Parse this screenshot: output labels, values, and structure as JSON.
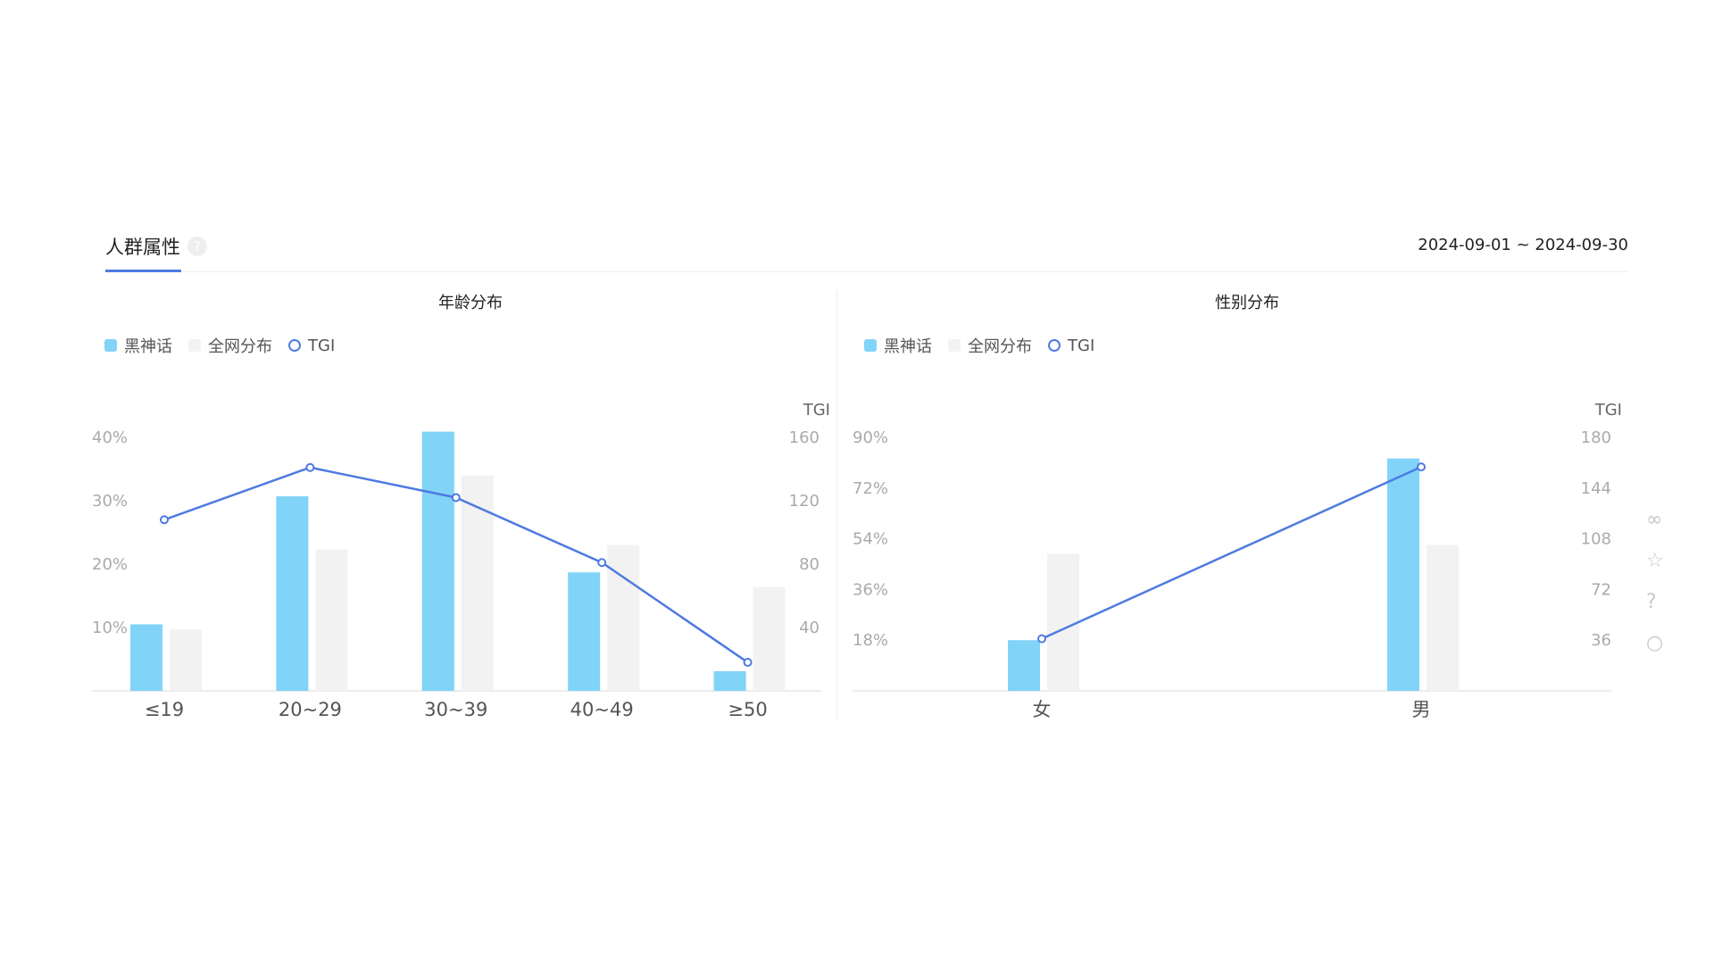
{
  "header": {
    "tab_label": "人群属性",
    "help_icon": "?",
    "date_range": "2024-09-01 ~ 2024-09-30"
  },
  "legend": {
    "series_a": "黑神话",
    "series_b": "全网分布",
    "series_c": "TGI"
  },
  "colors": {
    "series_a": "#81d3f8",
    "series_b": "#f2f2f2",
    "tgi_line": "#4e7be0",
    "tab_accent": "#4e7be0"
  },
  "side_icons": [
    "link-icon",
    "star-icon",
    "help-circle-icon",
    "circle-icon"
  ],
  "chart_data": [
    {
      "type": "bar",
      "title": "年龄分布",
      "categories": [
        "≤19",
        "20~29",
        "30~39",
        "40~49",
        "≥50"
      ],
      "series": [
        {
          "name": "黑神话",
          "values": [
            10.5,
            30.7,
            40.9,
            18.7,
            3.1
          ]
        },
        {
          "name": "全网分布",
          "values": [
            9.7,
            22.3,
            34.0,
            23.0,
            16.4
          ]
        },
        {
          "name": "TGI",
          "type": "line",
          "axis": "right",
          "values": [
            108,
            141,
            122,
            81,
            18
          ]
        }
      ],
      "y_left": {
        "ticks": [
          "10%",
          "20%",
          "30%",
          "40%"
        ],
        "tick_values": [
          10,
          20,
          30,
          40
        ],
        "ylim": [
          0,
          40
        ]
      },
      "y_right": {
        "label": "TGI",
        "ticks": [
          "40",
          "80",
          "120",
          "160"
        ],
        "tick_values": [
          40,
          80,
          120,
          160
        ],
        "ylim": [
          0,
          160
        ]
      },
      "legend_position": "top-left"
    },
    {
      "type": "bar",
      "title": "性别分布",
      "categories": [
        "女",
        "男"
      ],
      "series": [
        {
          "name": "黑神话",
          "values": [
            18.0,
            82.5
          ]
        },
        {
          "name": "全网分布",
          "values": [
            48.7,
            51.8
          ]
        },
        {
          "name": "TGI",
          "type": "line",
          "axis": "right",
          "values": [
            37,
            159
          ]
        }
      ],
      "y_left": {
        "ticks": [
          "18%",
          "36%",
          "54%",
          "72%",
          "90%"
        ],
        "tick_values": [
          18,
          36,
          54,
          72,
          90
        ],
        "ylim": [
          0,
          90
        ]
      },
      "y_right": {
        "label": "TGI",
        "ticks": [
          "36",
          "72",
          "108",
          "144",
          "180"
        ],
        "tick_values": [
          36,
          72,
          108,
          144,
          180
        ],
        "ylim": [
          0,
          180
        ]
      },
      "legend_position": "top-left"
    }
  ]
}
